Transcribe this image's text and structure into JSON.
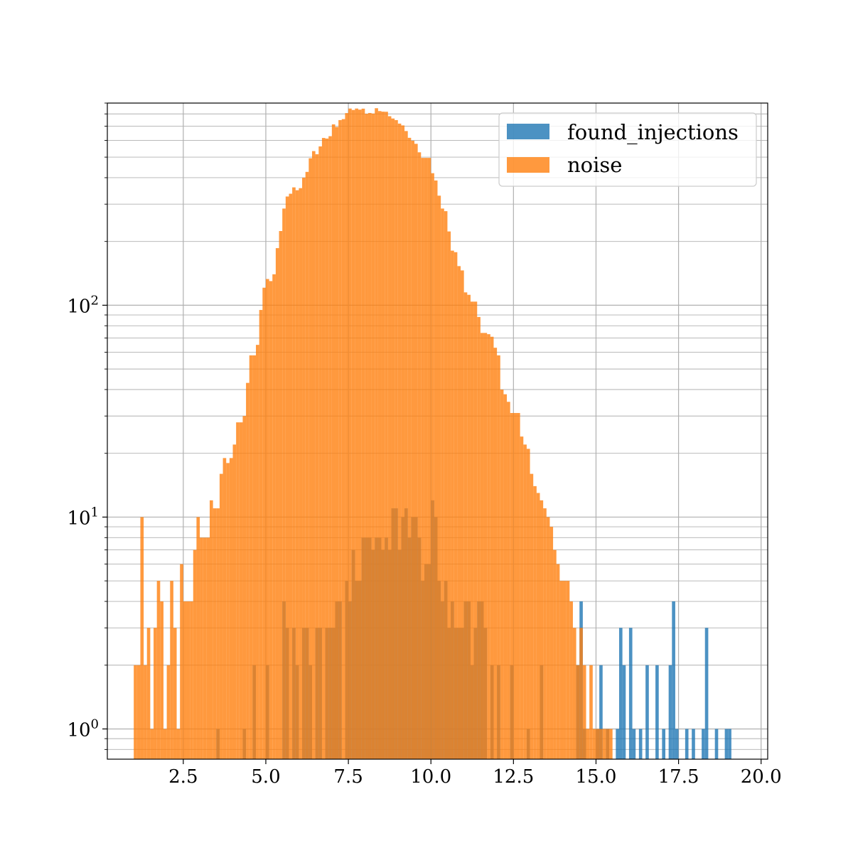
{
  "chart_data": {
    "type": "bar",
    "title": "",
    "xlabel": "",
    "ylabel": "",
    "xlim": [
      0.2,
      20.2
    ],
    "ylim": [
      0.72,
      900
    ],
    "yscale": "log",
    "grid": true,
    "bin_width": 0.1,
    "xticks": [
      2.5,
      5.0,
      7.5,
      10.0,
      12.5,
      15.0,
      17.5,
      20.0
    ],
    "xtick_labels": [
      "2.5",
      "5.0",
      "7.5",
      "10.0",
      "12.5",
      "15.0",
      "17.5",
      "20.0"
    ],
    "yticks": [
      1,
      10,
      100
    ],
    "ytick_labels": [
      "10",
      "10",
      "10"
    ],
    "ytick_exponents": [
      "0",
      "1",
      "2"
    ],
    "legend": {
      "placement": "upper right",
      "entries": [
        "found_injections",
        "noise"
      ]
    },
    "colors": {
      "found_injections": "#1f77b4",
      "noise": "#ff7f0e",
      "overlap": "#dd8530"
    },
    "series": [
      {
        "name": "found_injections",
        "color": "#1f77b4",
        "opacity": 0.8,
        "bins": [
          [
            3.5,
            3.6,
            1
          ],
          [
            4.3,
            4.4,
            1
          ],
          [
            4.6,
            4.7,
            2
          ],
          [
            5.0,
            5.1,
            2
          ],
          [
            5.5,
            5.6,
            4
          ],
          [
            5.6,
            5.7,
            3
          ],
          [
            5.8,
            5.9,
            3
          ],
          [
            5.9,
            6.0,
            2
          ],
          [
            6.1,
            6.2,
            3
          ],
          [
            6.2,
            6.3,
            3
          ],
          [
            6.3,
            6.4,
            2
          ],
          [
            6.5,
            6.6,
            3
          ],
          [
            6.6,
            6.7,
            3
          ],
          [
            6.8,
            6.9,
            3
          ],
          [
            6.9,
            7.0,
            3
          ],
          [
            7.0,
            7.1,
            3
          ],
          [
            7.1,
            7.2,
            4
          ],
          [
            7.2,
            7.3,
            4
          ],
          [
            7.4,
            7.5,
            5
          ],
          [
            7.5,
            7.6,
            4
          ],
          [
            7.6,
            7.7,
            7
          ],
          [
            7.7,
            7.8,
            5
          ],
          [
            7.8,
            7.9,
            5
          ],
          [
            7.9,
            8.0,
            8
          ],
          [
            8.0,
            8.1,
            8
          ],
          [
            8.1,
            8.2,
            8
          ],
          [
            8.2,
            8.3,
            7
          ],
          [
            8.3,
            8.4,
            8
          ],
          [
            8.4,
            8.5,
            8
          ],
          [
            8.5,
            8.6,
            7
          ],
          [
            8.6,
            8.7,
            8
          ],
          [
            8.7,
            8.8,
            7
          ],
          [
            8.8,
            8.9,
            11
          ],
          [
            8.9,
            9.0,
            11
          ],
          [
            9.0,
            9.1,
            7
          ],
          [
            9.1,
            9.2,
            10
          ],
          [
            9.2,
            9.3,
            11
          ],
          [
            9.3,
            9.4,
            8
          ],
          [
            9.4,
            9.5,
            10
          ],
          [
            9.5,
            9.6,
            10
          ],
          [
            9.6,
            9.7,
            8
          ],
          [
            9.7,
            9.8,
            5
          ],
          [
            9.8,
            9.9,
            6
          ],
          [
            9.9,
            10.0,
            6
          ],
          [
            10.0,
            10.1,
            12
          ],
          [
            10.1,
            10.2,
            10
          ],
          [
            10.2,
            10.3,
            5
          ],
          [
            10.3,
            10.4,
            4
          ],
          [
            10.4,
            10.5,
            5
          ],
          [
            10.5,
            10.6,
            3
          ],
          [
            10.6,
            10.7,
            4
          ],
          [
            10.7,
            10.8,
            3
          ],
          [
            10.8,
            10.9,
            3
          ],
          [
            10.9,
            11.0,
            3
          ],
          [
            11.0,
            11.1,
            4
          ],
          [
            11.1,
            11.2,
            4
          ],
          [
            11.2,
            11.3,
            2
          ],
          [
            11.3,
            11.4,
            3
          ],
          [
            11.4,
            11.5,
            4
          ],
          [
            11.5,
            11.6,
            4
          ],
          [
            11.6,
            11.7,
            3
          ],
          [
            11.8,
            11.9,
            2
          ],
          [
            12.0,
            12.1,
            2
          ],
          [
            12.4,
            12.5,
            2
          ],
          [
            12.9,
            13.0,
            1
          ],
          [
            13.3,
            13.4,
            2
          ],
          [
            14.4,
            14.5,
            2
          ],
          [
            14.5,
            14.6,
            4
          ],
          [
            14.6,
            14.7,
            1
          ],
          [
            15.0,
            15.1,
            1
          ],
          [
            15.1,
            15.2,
            2
          ],
          [
            15.3,
            15.4,
            1
          ],
          [
            15.6,
            15.7,
            1
          ],
          [
            15.7,
            15.8,
            3
          ],
          [
            15.8,
            15.9,
            2
          ],
          [
            16.0,
            16.1,
            3
          ],
          [
            16.1,
            16.2,
            1
          ],
          [
            16.3,
            16.4,
            1
          ],
          [
            16.5,
            16.6,
            2
          ],
          [
            16.8,
            16.9,
            2
          ],
          [
            17.0,
            17.1,
            1
          ],
          [
            17.2,
            17.3,
            2
          ],
          [
            17.3,
            17.4,
            4
          ],
          [
            17.4,
            17.5,
            1
          ],
          [
            17.7,
            17.8,
            1
          ],
          [
            17.9,
            18.0,
            1
          ],
          [
            18.2,
            18.3,
            1
          ],
          [
            18.3,
            18.4,
            3
          ],
          [
            18.6,
            18.7,
            1
          ],
          [
            18.9,
            19.0,
            1
          ],
          [
            19.0,
            19.1,
            1
          ]
        ]
      },
      {
        "name": "noise",
        "color": "#ff7f0e",
        "opacity": 0.8,
        "bins": [
          [
            1.0,
            1.1,
            2
          ],
          [
            1.1,
            1.2,
            2
          ],
          [
            1.2,
            1.3,
            10
          ],
          [
            1.3,
            1.4,
            2
          ],
          [
            1.4,
            1.5,
            3
          ],
          [
            1.5,
            1.6,
            1
          ],
          [
            1.6,
            1.7,
            3
          ],
          [
            1.7,
            1.8,
            5
          ],
          [
            1.8,
            1.9,
            4
          ],
          [
            1.9,
            2.0,
            1
          ],
          [
            2.0,
            2.1,
            2
          ],
          [
            2.1,
            2.2,
            5
          ],
          [
            2.2,
            2.3,
            3
          ],
          [
            2.3,
            2.4,
            1
          ],
          [
            2.4,
            2.5,
            6
          ],
          [
            2.5,
            2.6,
            4
          ],
          [
            2.6,
            2.7,
            4
          ],
          [
            2.7,
            2.8,
            4
          ],
          [
            2.8,
            2.9,
            7
          ],
          [
            2.9,
            3.0,
            10
          ],
          [
            3.0,
            3.1,
            8
          ],
          [
            3.1,
            3.2,
            8
          ],
          [
            3.2,
            3.3,
            8
          ],
          [
            3.3,
            3.4,
            12
          ],
          [
            3.4,
            3.5,
            11
          ],
          [
            3.5,
            3.6,
            11
          ],
          [
            3.6,
            3.7,
            16
          ],
          [
            3.7,
            3.8,
            19
          ],
          [
            3.8,
            3.9,
            18
          ],
          [
            3.9,
            4.0,
            19
          ],
          [
            4.0,
            4.1,
            22
          ],
          [
            4.1,
            4.2,
            28
          ],
          [
            4.2,
            4.3,
            28
          ],
          [
            4.3,
            4.4,
            30
          ],
          [
            4.4,
            4.5,
            43
          ],
          [
            4.5,
            4.6,
            58
          ],
          [
            4.6,
            4.7,
            58
          ],
          [
            4.7,
            4.8,
            65
          ],
          [
            4.8,
            4.9,
            95
          ],
          [
            4.9,
            5.0,
            121
          ],
          [
            5.0,
            5.1,
            133
          ],
          [
            5.1,
            5.2,
            130
          ],
          [
            5.2,
            5.3,
            140
          ],
          [
            5.3,
            5.4,
            186
          ],
          [
            5.4,
            5.5,
            224
          ],
          [
            5.5,
            5.6,
            286
          ],
          [
            5.6,
            5.7,
            326
          ],
          [
            5.7,
            5.8,
            336
          ],
          [
            5.8,
            5.9,
            360
          ],
          [
            5.9,
            6.0,
            349
          ],
          [
            6.0,
            6.1,
            357
          ],
          [
            6.1,
            6.2,
            400
          ],
          [
            6.2,
            6.3,
            426
          ],
          [
            6.3,
            6.4,
            494
          ],
          [
            6.4,
            6.5,
            534
          ],
          [
            6.5,
            6.6,
            516
          ],
          [
            6.6,
            6.7,
            562
          ],
          [
            6.7,
            6.8,
            616
          ],
          [
            6.8,
            6.9,
            612
          ],
          [
            6.9,
            7.0,
            628
          ],
          [
            7.0,
            7.1,
            714
          ],
          [
            7.1,
            7.2,
            694
          ],
          [
            7.2,
            7.3,
            748
          ],
          [
            7.3,
            7.4,
            756
          ],
          [
            7.4,
            7.5,
            807
          ],
          [
            7.5,
            7.6,
            848
          ],
          [
            7.6,
            7.7,
            835
          ],
          [
            7.7,
            7.8,
            848
          ],
          [
            7.8,
            7.9,
            838
          ],
          [
            7.9,
            8.0,
            847
          ],
          [
            8.0,
            8.1,
            801
          ],
          [
            8.1,
            8.2,
            808
          ],
          [
            8.2,
            8.3,
            803
          ],
          [
            8.3,
            8.4,
            851
          ],
          [
            8.4,
            8.5,
            825
          ],
          [
            8.5,
            8.6,
            820
          ],
          [
            8.6,
            8.7,
            819
          ],
          [
            8.7,
            8.8,
            780
          ],
          [
            8.8,
            8.9,
            761
          ],
          [
            8.9,
            9.0,
            748
          ],
          [
            9.0,
            9.1,
            720
          ],
          [
            9.1,
            9.2,
            706
          ],
          [
            9.2,
            9.3,
            664
          ],
          [
            9.3,
            9.4,
            617
          ],
          [
            9.4,
            9.5,
            598
          ],
          [
            9.5,
            9.6,
            578
          ],
          [
            9.6,
            9.7,
            527
          ],
          [
            9.7,
            9.8,
            496
          ],
          [
            9.8,
            9.9,
            496
          ],
          [
            9.9,
            10.0,
            496
          ],
          [
            10.0,
            10.1,
            420
          ],
          [
            10.1,
            10.2,
            388
          ],
          [
            10.2,
            10.3,
            329
          ],
          [
            10.3,
            10.4,
            286
          ],
          [
            10.4,
            10.5,
            278
          ],
          [
            10.5,
            10.6,
            223
          ],
          [
            10.6,
            10.7,
            181
          ],
          [
            10.7,
            10.8,
            178
          ],
          [
            10.8,
            10.9,
            153
          ],
          [
            10.9,
            11.0,
            146
          ],
          [
            11.0,
            11.1,
            115
          ],
          [
            11.1,
            11.2,
            112
          ],
          [
            11.2,
            11.3,
            104
          ],
          [
            11.3,
            11.4,
            104
          ],
          [
            11.4,
            11.5,
            88
          ],
          [
            11.5,
            11.6,
            74
          ],
          [
            11.6,
            11.7,
            74
          ],
          [
            11.7,
            11.8,
            73
          ],
          [
            11.8,
            11.9,
            71
          ],
          [
            11.9,
            12.0,
            63
          ],
          [
            12.0,
            12.1,
            58
          ],
          [
            12.1,
            12.2,
            40
          ],
          [
            12.2,
            12.3,
            38
          ],
          [
            12.3,
            12.4,
            35
          ],
          [
            12.4,
            12.5,
            31
          ],
          [
            12.5,
            12.6,
            31
          ],
          [
            12.6,
            12.7,
            31
          ],
          [
            12.7,
            12.8,
            24
          ],
          [
            12.8,
            12.9,
            22
          ],
          [
            12.9,
            13.0,
            21
          ],
          [
            13.0,
            13.1,
            16
          ],
          [
            13.1,
            13.2,
            14
          ],
          [
            13.2,
            13.3,
            13
          ],
          [
            13.3,
            13.4,
            12
          ],
          [
            13.4,
            13.5,
            11
          ],
          [
            13.5,
            13.6,
            10
          ],
          [
            13.6,
            13.7,
            9
          ],
          [
            13.7,
            13.8,
            7
          ],
          [
            13.8,
            13.9,
            6
          ],
          [
            13.9,
            14.0,
            5
          ],
          [
            14.0,
            14.1,
            5
          ],
          [
            14.1,
            14.2,
            5
          ],
          [
            14.2,
            14.3,
            4
          ],
          [
            14.3,
            14.4,
            3
          ],
          [
            14.4,
            14.5,
            2
          ],
          [
            14.5,
            14.6,
            3
          ],
          [
            14.6,
            14.7,
            2
          ],
          [
            14.7,
            14.8,
            1
          ],
          [
            14.8,
            14.9,
            2
          ],
          [
            14.9,
            15.0,
            1
          ],
          [
            15.0,
            15.1,
            1
          ],
          [
            15.1,
            15.2,
            1
          ],
          [
            15.2,
            15.3,
            1
          ],
          [
            15.3,
            15.4,
            1
          ],
          [
            15.4,
            15.5,
            1
          ]
        ]
      }
    ]
  }
}
